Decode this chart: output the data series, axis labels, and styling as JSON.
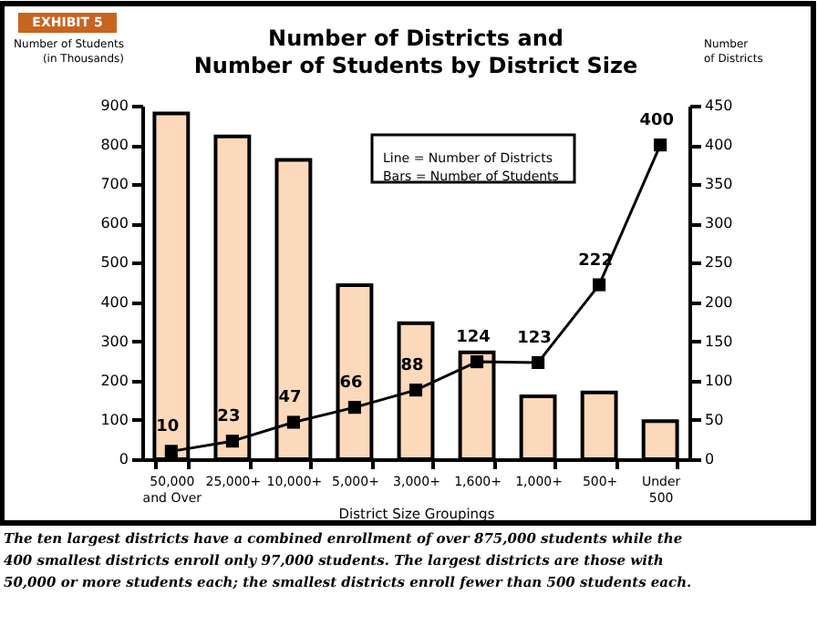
{
  "chart_data": {
    "type": "bar",
    "title": "Number of Districts and\nNumber of Students by District Size",
    "xlabel": "District Size Groupings",
    "ylabel": "Number of Students\n(in Thousands)",
    "y2label": "Number\nof Districts",
    "categories": [
      "50,000\nand Over",
      "25,000+",
      "10,000+",
      "5,000+",
      "3,000+",
      "1,600+",
      "1,000+",
      "500+",
      "Under\n500"
    ],
    "series": [
      {
        "color": "#fcd9bb",
        "values": [
          880,
          822,
          762,
          443,
          346,
          272,
          160,
          170,
          97
        ]
      },
      {
        "type": "line",
        "axis": "y2",
        "color": "#000000",
        "marker": "square",
        "values": [
          10,
          23,
          47,
          66,
          88,
          124,
          123,
          222,
          400
        ],
        "value_labels": [
          "10",
          "23",
          "47",
          "66",
          "88",
          "124",
          "123",
          "222",
          "400"
        ]
      }
    ],
    "ylim": [
      0,
      900
    ],
    "yticks": [
      0,
      100,
      200,
      300,
      400,
      500,
      600,
      700,
      800,
      900
    ],
    "y2lim": [
      0,
      450
    ],
    "y2ticks": [
      0,
      50,
      100,
      150,
      200,
      250,
      300,
      350,
      400,
      450
    ],
    "grid": false,
    "annotations": [
      "EXHIBIT 5",
      "Line = Number of Districts\nBars = Number of Students",
      "The ten largest districts have a combined enrollment of over 875,000 students while the 400 smallest districts enroll only 97,000 students. The largest districts are those with 50,000 or more students each; the smallest districts enroll fewer than 500 students each."
    ]
  }
}
